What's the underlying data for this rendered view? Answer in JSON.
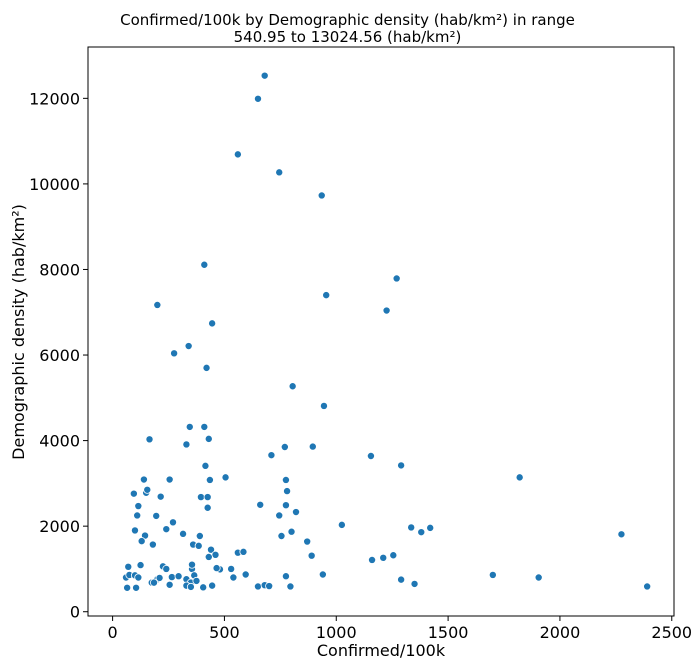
{
  "chart_data": {
    "type": "scatter",
    "title_line1": "Confirmed/100k by Demographic density (hab/km²) in range",
    "title_line2": "540.95 to 13024.56 (hab/km²)",
    "xlabel": "Confirmed/100k",
    "ylabel": "Demographic density (hab/km²)",
    "xlim": [
      -110,
      2510
    ],
    "ylim": [
      -100,
      13200
    ],
    "x_ticks": [
      0,
      500,
      1000,
      1500,
      2000,
      2500
    ],
    "y_ticks": [
      0,
      2000,
      4000,
      6000,
      8000,
      10000,
      12000
    ],
    "grid": false,
    "point_color": "#1f77b4",
    "points": [
      [
        680,
        12530
      ],
      [
        650,
        11990
      ],
      [
        560,
        10690
      ],
      [
        745,
        10270
      ],
      [
        935,
        9730
      ],
      [
        410,
        8110
      ],
      [
        1270,
        7790
      ],
      [
        955,
        7400
      ],
      [
        200,
        7170
      ],
      [
        1225,
        7040
      ],
      [
        445,
        6740
      ],
      [
        275,
        6040
      ],
      [
        340,
        6210
      ],
      [
        420,
        5700
      ],
      [
        805,
        5270
      ],
      [
        945,
        4810
      ],
      [
        345,
        4320
      ],
      [
        410,
        4320
      ],
      [
        165,
        4030
      ],
      [
        430,
        4040
      ],
      [
        330,
        3910
      ],
      [
        770,
        3850
      ],
      [
        895,
        3860
      ],
      [
        1155,
        3640
      ],
      [
        710,
        3660
      ],
      [
        415,
        3410
      ],
      [
        1290,
        3420
      ],
      [
        255,
        3090
      ],
      [
        140,
        3090
      ],
      [
        435,
        3080
      ],
      [
        505,
        3140
      ],
      [
        775,
        3080
      ],
      [
        1820,
        3140
      ],
      [
        150,
        2780
      ],
      [
        155,
        2850
      ],
      [
        95,
        2760
      ],
      [
        215,
        2690
      ],
      [
        395,
        2680
      ],
      [
        425,
        2680
      ],
      [
        780,
        2820
      ],
      [
        115,
        2470
      ],
      [
        425,
        2430
      ],
      [
        660,
        2500
      ],
      [
        775,
        2490
      ],
      [
        820,
        2330
      ],
      [
        745,
        2250
      ],
      [
        110,
        2250
      ],
      [
        195,
        2240
      ],
      [
        270,
        2090
      ],
      [
        1025,
        2030
      ],
      [
        100,
        1900
      ],
      [
        240,
        1930
      ],
      [
        315,
        1820
      ],
      [
        1335,
        1970
      ],
      [
        1420,
        1960
      ],
      [
        1380,
        1860
      ],
      [
        2275,
        1810
      ],
      [
        145,
        1780
      ],
      [
        390,
        1770
      ],
      [
        755,
        1770
      ],
      [
        800,
        1870
      ],
      [
        130,
        1650
      ],
      [
        870,
        1640
      ],
      [
        180,
        1570
      ],
      [
        360,
        1570
      ],
      [
        385,
        1540
      ],
      [
        440,
        1450
      ],
      [
        560,
        1380
      ],
      [
        585,
        1400
      ],
      [
        460,
        1330
      ],
      [
        430,
        1280
      ],
      [
        890,
        1310
      ],
      [
        1160,
        1210
      ],
      [
        1210,
        1260
      ],
      [
        1255,
        1320
      ],
      [
        70,
        1050
      ],
      [
        125,
        1090
      ],
      [
        225,
        1060
      ],
      [
        240,
        1000
      ],
      [
        355,
        1000
      ],
      [
        355,
        1100
      ],
      [
        480,
        990
      ],
      [
        530,
        1000
      ],
      [
        465,
        1020
      ],
      [
        365,
        850
      ],
      [
        60,
        800
      ],
      [
        75,
        860
      ],
      [
        100,
        850
      ],
      [
        115,
        800
      ],
      [
        200,
        760
      ],
      [
        210,
        790
      ],
      [
        265,
        810
      ],
      [
        295,
        830
      ],
      [
        330,
        760
      ],
      [
        350,
        680
      ],
      [
        375,
        720
      ],
      [
        540,
        800
      ],
      [
        595,
        870
      ],
      [
        775,
        830
      ],
      [
        940,
        870
      ],
      [
        1290,
        750
      ],
      [
        1700,
        860
      ],
      [
        1905,
        800
      ],
      [
        175,
        680
      ],
      [
        185,
        680
      ],
      [
        255,
        630
      ],
      [
        330,
        610
      ],
      [
        350,
        580
      ],
      [
        405,
        570
      ],
      [
        445,
        610
      ],
      [
        650,
        590
      ],
      [
        680,
        620
      ],
      [
        700,
        600
      ],
      [
        795,
        590
      ],
      [
        1350,
        650
      ],
      [
        2390,
        590
      ],
      [
        65,
        560
      ],
      [
        105,
        560
      ]
    ]
  }
}
